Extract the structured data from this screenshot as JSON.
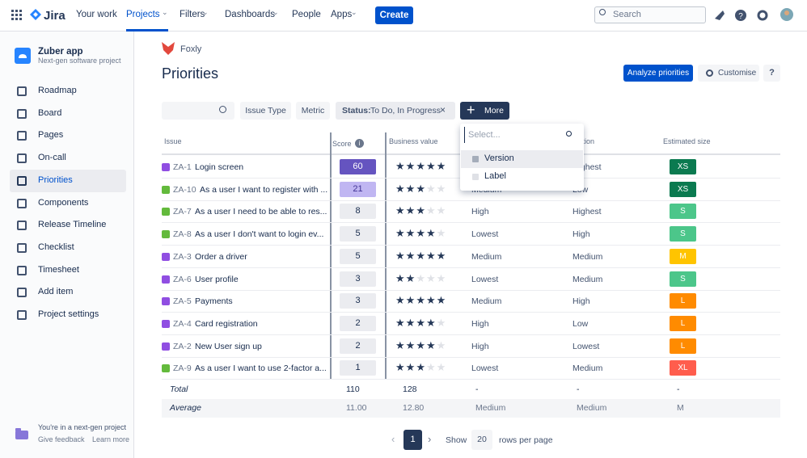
{
  "nav": {
    "product": "Jira",
    "items": [
      "Your work",
      "Projects",
      "Filters",
      "Dashboards",
      "People",
      "Apps"
    ],
    "active": 1,
    "create": "Create",
    "search": "Search"
  },
  "sidebar": {
    "project": "Zuber app",
    "subtitle": "Next-gen software project",
    "items": [
      "Roadmap",
      "Board",
      "Pages",
      "On-call",
      "Priorities",
      "Components",
      "Release Timeline",
      "Checklist",
      "Timesheet",
      "Add item",
      "Project settings"
    ],
    "active": 4,
    "footer": {
      "note": "You're in a next-gen project",
      "links": [
        "Give feedback",
        "Learn more"
      ]
    }
  },
  "header": {
    "breadcrumb": "Foxly",
    "title": "Priorities",
    "buttons": [
      "Analyze priorities",
      "Customise",
      "?"
    ]
  },
  "filters": {
    "issue_type": "Issue Type",
    "metric": "Metric",
    "status_label": "Status:",
    "status_value": "To Do, In Progress",
    "more": "More"
  },
  "dropdown": {
    "placeholder": "Select...",
    "options": [
      "Version",
      "Label"
    ]
  },
  "table": {
    "headers": {
      "issue": "Issue",
      "score": "Score",
      "business_value": "Business value",
      "risk_reduction": "Risk reduction",
      "estimated_size": "Estimated size"
    },
    "rows": [
      {
        "key": "ZA-1",
        "summary": "Login screen",
        "icon": "#904ee2",
        "score": 60,
        "stars": 5,
        "col4": null,
        "col5": "Highest",
        "size": "XS",
        "size_color": "#0b7a50"
      },
      {
        "key": "ZA-10",
        "summary": "As a user I want to register with ...",
        "icon": "#63ba3c",
        "score": 21,
        "stars": 3,
        "col4": "Medium",
        "col5": "Low",
        "size": "XS",
        "size_color": "#0b7a50"
      },
      {
        "key": "ZA-7",
        "summary": "As a user I need to be able to res...",
        "icon": "#63ba3c",
        "score": 8,
        "stars": 3,
        "col4": "High",
        "col5": "Highest",
        "size": "S",
        "size_color": "#4cc68a"
      },
      {
        "key": "ZA-8",
        "summary": "As a user I don't want to login ev...",
        "icon": "#63ba3c",
        "score": 5,
        "stars": 4,
        "col4": "Lowest",
        "col5": "High",
        "size": "S",
        "size_color": "#4cc68a"
      },
      {
        "key": "ZA-3",
        "summary": "Order a driver",
        "icon": "#904ee2",
        "score": 5,
        "stars": 5,
        "col4": "Medium",
        "col5": "Medium",
        "size": "M",
        "size_color": "#ffc400"
      },
      {
        "key": "ZA-6",
        "summary": "User profile",
        "icon": "#904ee2",
        "score": 3,
        "stars": 2,
        "col4": "Lowest",
        "col5": "Medium",
        "size": "S",
        "size_color": "#4cc68a"
      },
      {
        "key": "ZA-5",
        "summary": "Payments",
        "icon": "#904ee2",
        "score": 3,
        "stars": 5,
        "col4": "Medium",
        "col5": "High",
        "size": "L",
        "size_color": "#ff8b00"
      },
      {
        "key": "ZA-4",
        "summary": "Card registration",
        "icon": "#904ee2",
        "score": 2,
        "stars": 4,
        "col4": "High",
        "col5": "Low",
        "size": "L",
        "size_color": "#ff8b00"
      },
      {
        "key": "ZA-2",
        "summary": "New User sign up",
        "icon": "#904ee2",
        "score": 2,
        "stars": 4,
        "col4": "High",
        "col5": "Lowest",
        "size": "L",
        "size_color": "#ff8b00"
      },
      {
        "key": "ZA-9",
        "summary": "As a user I want to use 2-factor a...",
        "icon": "#63ba3c",
        "score": 1,
        "stars": 3,
        "col4": "Lowest",
        "col5": "Medium",
        "size": "XL",
        "size_color": "#ff5d4d"
      }
    ],
    "total": {
      "label": "Total",
      "score": 110,
      "business_value": 128,
      "col4": "-",
      "col5": "-",
      "size": "-"
    },
    "average": {
      "label": "Average",
      "score": "11.00",
      "business_value": "12.80",
      "col4": "Medium",
      "col5": "Medium",
      "size": "M"
    }
  },
  "pagination": {
    "page": 1,
    "show": "Show",
    "rows": 20,
    "suffix": "rows per page"
  }
}
